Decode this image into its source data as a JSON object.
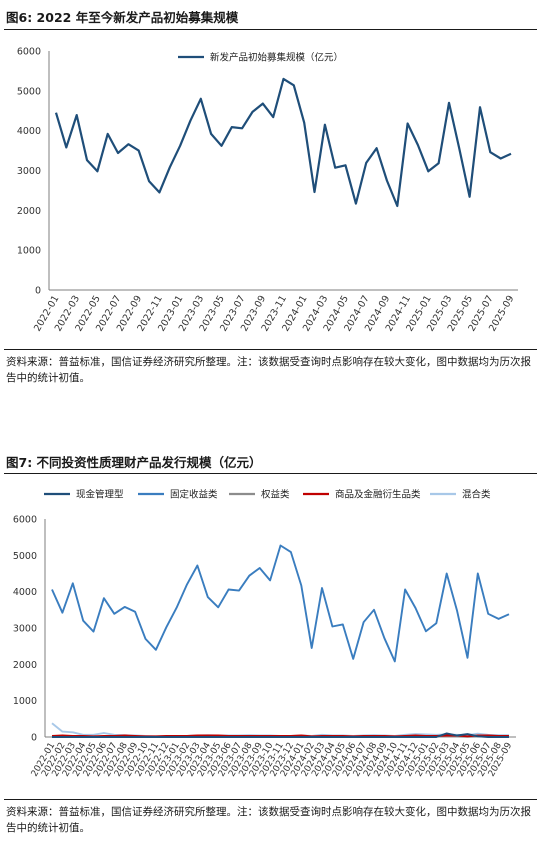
{
  "figure1": {
    "title": "图6: 2022 年至今新发产品初始募集规模",
    "source": "资料来源：普益标准，国信证券经济研究所整理。注：该数据受查询时点影响存在较大变化，图中数据均为历次报告中的统计初值。"
  },
  "figure2": {
    "title": "图7: 不同投资性质理财产品发行规模（亿元）",
    "source": "资料来源：普益标准，国信证券经济研究所整理。注：该数据受查询时点影响存在较大变化，图中数据均为历次报告中的统计初值。"
  },
  "chart_data": [
    {
      "type": "line",
      "title": "",
      "xlabel": "",
      "ylabel": "",
      "ylim": [
        0,
        6000
      ],
      "yticks": [
        "0",
        "1000",
        "2000",
        "3000",
        "4000",
        "5000",
        "6000"
      ],
      "legend_position": "top",
      "grid": false,
      "x": [
        "2022-01",
        "2022-02",
        "2022-03",
        "2022-04",
        "2022-05",
        "2022-06",
        "2022-07",
        "2022-08",
        "2022-09",
        "2022-10",
        "2022-11",
        "2022-12",
        "2023-01",
        "2023-02",
        "2023-03",
        "2023-04",
        "2023-05",
        "2023-06",
        "2023-07",
        "2023-08",
        "2023-09",
        "2023-10",
        "2023-11",
        "2023-12",
        "2024-01",
        "2024-02",
        "2024-03",
        "2024-04",
        "2024-05",
        "2024-06",
        "2024-07",
        "2024-08",
        "2024-09",
        "2024-10",
        "2024-11",
        "2024-12",
        "2025-01",
        "2025-02",
        "2025-03",
        "2025-04",
        "2025-05",
        "2025-06",
        "2025-07",
        "2025-08",
        "2025-09"
      ],
      "xtick_labels": [
        "2022-01",
        "2022-03",
        "2022-05",
        "2022-07",
        "2022-09",
        "2022-11",
        "2023-01",
        "2023-03",
        "2023-05",
        "2023-07",
        "2023-09",
        "2023-11",
        "2024-01",
        "2024-03",
        "2024-05",
        "2024-07",
        "2024-09",
        "2024-11",
        "2025-01",
        "2025-03",
        "2025-05",
        "2025-07",
        "2025-09"
      ],
      "series": [
        {
          "name": "新发产品初始募集规模（亿元）",
          "color": "#1f4e79",
          "values": [
            4450,
            3580,
            4390,
            3260,
            2980,
            3920,
            3440,
            3660,
            3500,
            2730,
            2450,
            3080,
            3620,
            4250,
            4800,
            3920,
            3620,
            4090,
            4060,
            4470,
            4680,
            4340,
            5300,
            5140,
            4200,
            2460,
            4150,
            3070,
            3130,
            2170,
            3190,
            3560,
            2750,
            2110,
            4180,
            3640,
            2980,
            3180,
            4700,
            3550,
            2340,
            4590,
            3460,
            3300,
            3420
          ]
        }
      ]
    },
    {
      "type": "line",
      "title": "",
      "xlabel": "",
      "ylabel": "",
      "ylim": [
        0,
        6000
      ],
      "yticks": [
        "0",
        "1000",
        "2000",
        "3000",
        "4000",
        "5000",
        "6000"
      ],
      "legend_position": "top",
      "grid": false,
      "x": [
        "2022-01",
        "2022-02",
        "2022-03",
        "2022-04",
        "2022-05",
        "2022-06",
        "2022-07",
        "2022-08",
        "2022-09",
        "2022-10",
        "2022-11",
        "2022-12",
        "2023-01",
        "2023-02",
        "2023-03",
        "2023-04",
        "2023-05",
        "2023-06",
        "2023-07",
        "2023-08",
        "2023-09",
        "2023-10",
        "2023-11",
        "2023-12",
        "2024-01",
        "2024-02",
        "2024-03",
        "2024-04",
        "2024-05",
        "2024-06",
        "2024-07",
        "2024-08",
        "2024-09",
        "2024-10",
        "2024-11",
        "2024-12",
        "2025-01",
        "2025-02",
        "2025-03",
        "2025-04",
        "2025-05",
        "2025-06",
        "2025-07",
        "2025-08",
        "2025-09"
      ],
      "series": [
        {
          "name": "现金管理型",
          "color": "#1f4e79",
          "values": [
            0,
            0,
            0,
            0,
            0,
            0,
            0,
            0,
            0,
            0,
            0,
            0,
            0,
            0,
            0,
            0,
            0,
            0,
            0,
            0,
            0,
            0,
            0,
            0,
            0,
            0,
            0,
            0,
            0,
            0,
            0,
            0,
            0,
            0,
            0,
            0,
            0,
            0,
            100,
            40,
            80,
            20,
            0,
            0,
            0
          ]
        },
        {
          "name": "固定收益类",
          "color": "#3a7dbf",
          "values": [
            4060,
            3420,
            4230,
            3200,
            2900,
            3820,
            3390,
            3580,
            3450,
            2700,
            2400,
            3020,
            3560,
            4200,
            4720,
            3850,
            3570,
            4060,
            4030,
            4440,
            4650,
            4310,
            5270,
            5090,
            4170,
            2450,
            4100,
            3040,
            3100,
            2150,
            3160,
            3500,
            2720,
            2080,
            4060,
            3550,
            2910,
            3130,
            4500,
            3470,
            2180,
            4500,
            3390,
            3250,
            3380
          ]
        },
        {
          "name": "权益类",
          "color": "#8c8c8c",
          "values": [
            10,
            10,
            10,
            10,
            5,
            10,
            10,
            10,
            10,
            5,
            5,
            5,
            10,
            10,
            10,
            10,
            10,
            10,
            10,
            10,
            10,
            10,
            10,
            10,
            10,
            5,
            10,
            10,
            10,
            5,
            10,
            10,
            10,
            5,
            10,
            10,
            5,
            10,
            10,
            10,
            5,
            10,
            10,
            10,
            10
          ]
        },
        {
          "name": "商品及金融衍生品类",
          "color": "#c00000",
          "values": [
            30,
            40,
            30,
            30,
            20,
            30,
            30,
            40,
            30,
            20,
            20,
            30,
            30,
            30,
            40,
            40,
            40,
            30,
            30,
            30,
            30,
            30,
            30,
            30,
            40,
            20,
            30,
            30,
            30,
            20,
            30,
            30,
            30,
            20,
            30,
            40,
            30,
            30,
            40,
            40,
            20,
            40,
            40,
            30,
            30
          ]
        },
        {
          "name": "混合类",
          "color": "#a8c8e8",
          "values": [
            380,
            150,
            130,
            60,
            60,
            110,
            60,
            50,
            40,
            30,
            20,
            20,
            30,
            30,
            40,
            50,
            40,
            40,
            40,
            50,
            40,
            40,
            30,
            30,
            40,
            30,
            60,
            40,
            40,
            30,
            40,
            50,
            40,
            30,
            60,
            80,
            70,
            60,
            70,
            60,
            50,
            90,
            60,
            50,
            50
          ]
        }
      ]
    }
  ]
}
